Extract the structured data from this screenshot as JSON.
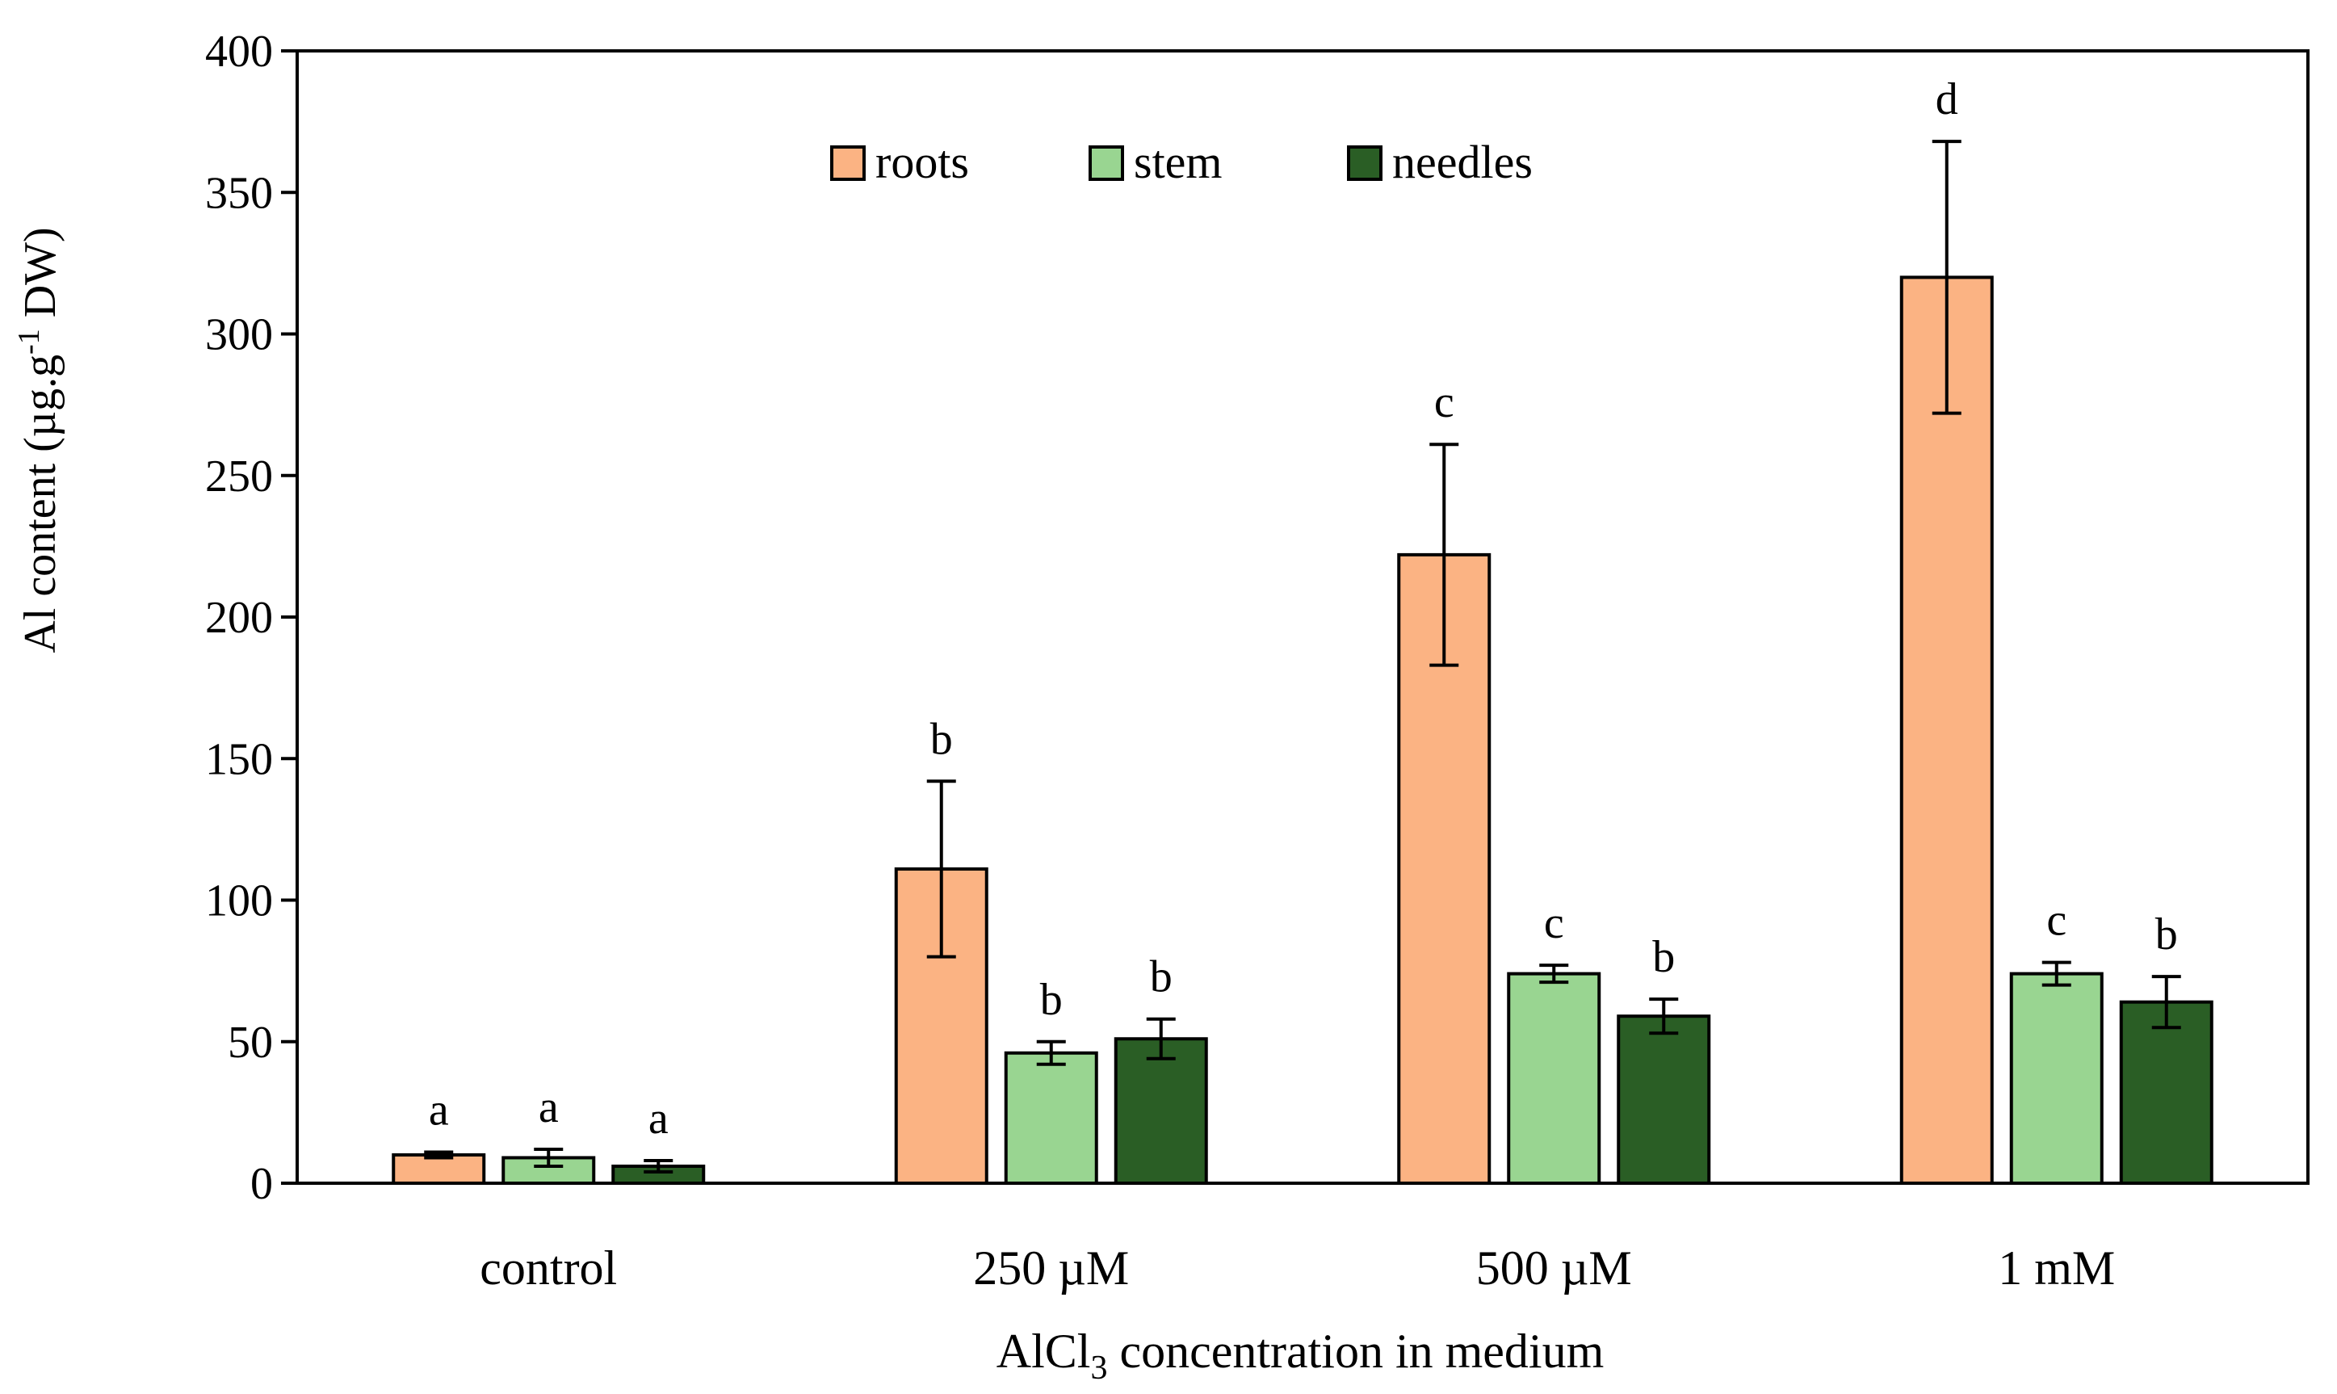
{
  "chart_data": {
    "type": "bar",
    "title": "",
    "xlabel": "AlCl",
    "xlabel_sub": "3",
    "xlabel_rest": " concentration in medium",
    "ylabel": "Al content (µg.g",
    "ylabel_sup": "-1",
    "ylabel_rest": " DW)",
    "ylim": [
      0,
      400
    ],
    "yticks": [
      0,
      50,
      100,
      150,
      200,
      250,
      300,
      350,
      400
    ],
    "categories": [
      "control",
      "250 µM",
      "500 µM",
      "1 mM"
    ],
    "legend_position": "top-center",
    "series": [
      {
        "name": "roots",
        "color": "#FBB383",
        "values": [
          10,
          111,
          222,
          320
        ],
        "errors": [
          1,
          31,
          39,
          48
        ],
        "letters": [
          "a",
          "b",
          "c",
          "d"
        ]
      },
      {
        "name": "stem",
        "color": "#99D591",
        "values": [
          9,
          46,
          74,
          74
        ],
        "errors": [
          3,
          4,
          3,
          4
        ],
        "letters": [
          "a",
          "b",
          "c",
          "c"
        ]
      },
      {
        "name": "needles",
        "color": "#2A5E25",
        "values": [
          6,
          51,
          59,
          64
        ],
        "errors": [
          2,
          7,
          6,
          9
        ],
        "letters": [
          "a",
          "b",
          "b",
          "b"
        ]
      }
    ]
  }
}
